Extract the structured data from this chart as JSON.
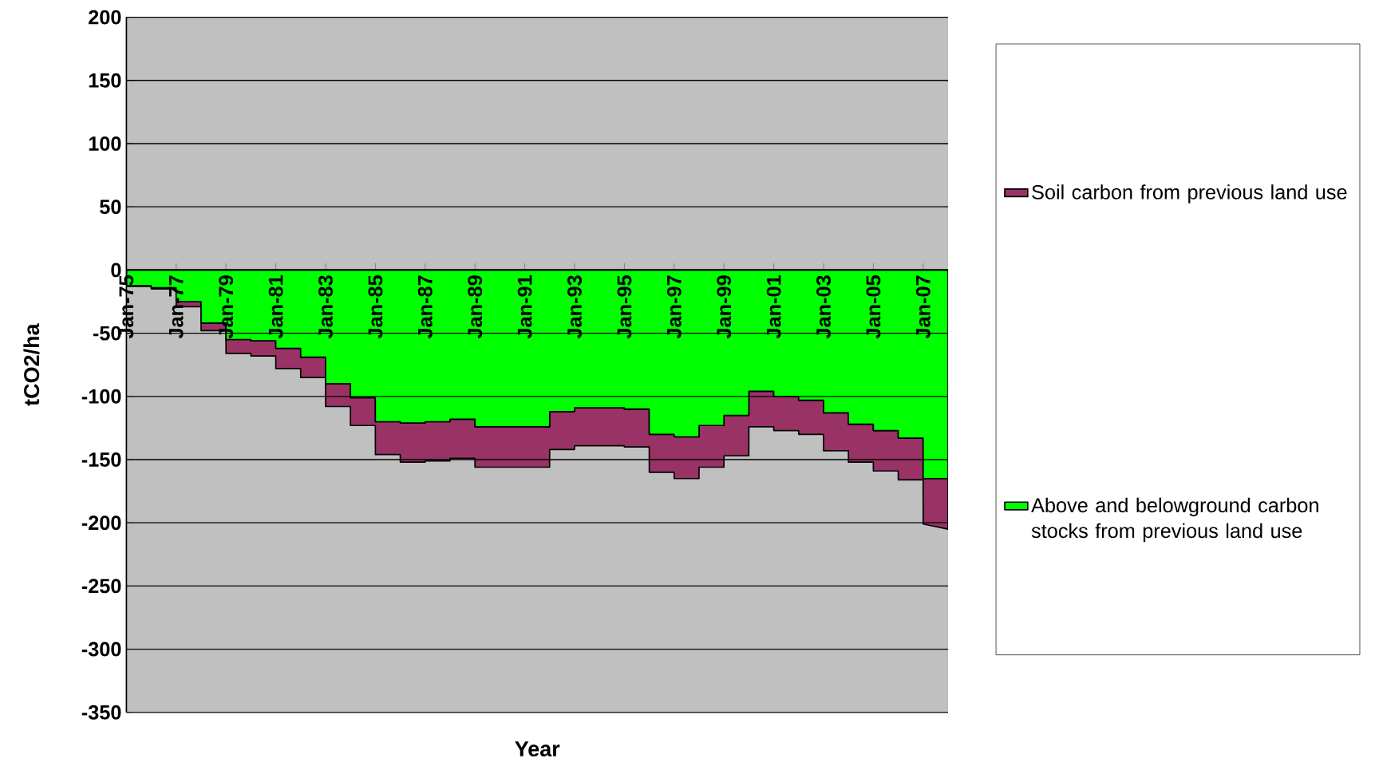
{
  "chart_data": {
    "type": "area",
    "stacked": true,
    "xlabel": "Year",
    "ylabel": "tCO2/ha",
    "x": [
      "1975-01-01",
      "1975-12-31",
      "1976-01-01",
      "1976-12-31",
      "1977-01-01",
      "1977-12-31",
      "1978-01-01",
      "1978-12-31",
      "1979-01-01",
      "1979-12-31",
      "1980-01-01",
      "1980-12-31",
      "1981-01-01",
      "1981-12-31",
      "1982-01-01",
      "1982-12-31",
      "1983-01-01",
      "1983-12-31",
      "1984-01-01",
      "1984-12-31",
      "1985-01-01",
      "1985-12-31",
      "1986-01-01",
      "1986-12-31",
      "1987-01-01",
      "1987-12-31",
      "1988-01-01",
      "1988-12-31",
      "1989-01-01",
      "1989-12-31",
      "1990-01-01",
      "1990-12-31",
      "1991-01-01",
      "1991-12-31",
      "1992-01-01",
      "1992-12-31",
      "1993-01-01",
      "1993-12-31",
      "1994-01-01",
      "1994-12-31",
      "1995-01-01",
      "1995-12-31",
      "1996-01-01",
      "1996-12-31",
      "1997-01-01",
      "1997-12-31",
      "1998-01-01",
      "1998-12-31",
      "1999-01-01",
      "1999-12-31",
      "2000-01-01",
      "2000-12-31",
      "2001-01-01",
      "2001-12-31",
      "2002-01-01",
      "2002-12-31",
      "2003-01-01",
      "2003-12-31",
      "2004-01-01",
      "2004-12-31",
      "2005-01-01",
      "2005-12-31",
      "2006-01-01",
      "2006-12-31",
      "2007-01-01",
      "2007-12-31"
    ],
    "series": [
      {
        "name": "Above and belowground carbon stocks from previous land use",
        "color": "#00ff00",
        "values": [
          -12.5,
          -12.5,
          -14,
          -14,
          -25,
          -25,
          -42,
          -42,
          -55,
          -55,
          -56,
          -56,
          -62,
          -62,
          -69,
          -69,
          -90,
          -90,
          -101,
          -101,
          -120,
          -120,
          -121,
          -121,
          -120,
          -120,
          -118,
          -118,
          -124,
          -124,
          -124,
          -124,
          -124,
          -124,
          -112,
          -112,
          -109,
          -109,
          -109,
          -109,
          -110,
          -110,
          -130,
          -130,
          -132,
          -132,
          -123,
          -123,
          -115,
          -115,
          -96,
          -96,
          -100,
          -100,
          -103,
          -103,
          -113,
          -113,
          -122,
          -122,
          -127,
          -127,
          -133,
          -133,
          -165,
          -165
        ]
      },
      {
        "name": "Soil carbon from previous land use",
        "color": "#993366",
        "values": [
          -0.5,
          -0.5,
          -1,
          -1,
          -4,
          -4,
          -6,
          -6,
          -11,
          -11,
          -12,
          -12,
          -16,
          -16,
          -16,
          -16,
          -18,
          -18,
          -22,
          -22,
          -26,
          -26,
          -31,
          -31,
          -31,
          -31,
          -31,
          -31,
          -32,
          -32,
          -32,
          -32,
          -32,
          -32,
          -30,
          -30,
          -30,
          -30,
          -30,
          -30,
          -30,
          -30,
          -30,
          -30,
          -33,
          -33,
          -33,
          -33,
          -32,
          -32,
          -28,
          -28,
          -27,
          -27,
          -27,
          -27,
          -30,
          -30,
          -30,
          -30,
          -32,
          -32,
          -33,
          -33,
          -36,
          -40
        ]
      }
    ],
    "xlim": [
      "1975-01-01",
      "2008-01-01"
    ],
    "xticks": [
      {
        "value": "1975-01-01",
        "label": "Jan-75"
      },
      {
        "value": "1977-01-01",
        "label": "Jan-77"
      },
      {
        "value": "1979-01-01",
        "label": "Jan-79"
      },
      {
        "value": "1981-01-01",
        "label": "Jan-81"
      },
      {
        "value": "1983-01-01",
        "label": "Jan-83"
      },
      {
        "value": "1985-01-01",
        "label": "Jan-85"
      },
      {
        "value": "1987-01-01",
        "label": "Jan-87"
      },
      {
        "value": "1989-01-01",
        "label": "Jan-89"
      },
      {
        "value": "1991-01-01",
        "label": "Jan-91"
      },
      {
        "value": "1993-01-01",
        "label": "Jan-93"
      },
      {
        "value": "1995-01-01",
        "label": "Jan-95"
      },
      {
        "value": "1997-01-01",
        "label": "Jan-97"
      },
      {
        "value": "1999-01-01",
        "label": "Jan-99"
      },
      {
        "value": "2001-01-01",
        "label": "Jan-01"
      },
      {
        "value": "2003-01-01",
        "label": "Jan-03"
      },
      {
        "value": "2005-01-01",
        "label": "Jan-05"
      },
      {
        "value": "2007-01-01",
        "label": "Jan-07"
      }
    ],
    "ylim": [
      -350,
      200
    ],
    "yticks": [
      -350,
      -300,
      -250,
      -200,
      -150,
      -100,
      -50,
      0,
      50,
      100,
      150,
      200
    ],
    "grid": "y",
    "legend": "right"
  }
}
